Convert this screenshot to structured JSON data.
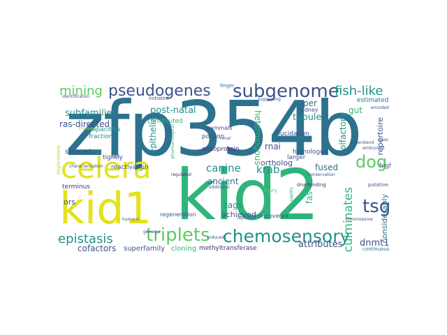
{
  "colors": {
    "yellow": "#e2e21b",
    "lime": "#a4db36",
    "green": "#5ec962",
    "teal_green": "#2fb47c",
    "teal": "#21918c",
    "blue_teal": "#2c728e",
    "navy": "#3b528b",
    "indigo": "#472d7b",
    "purple": "#440154"
  },
  "words": {
    "w01": "zfp354b",
    "w02": "kid2",
    "w03": "kid1",
    "w04": "celera",
    "w05": "subgenome",
    "w06": "pseudogenes",
    "w07": "triplets",
    "w08": "chemosensory",
    "w09": "mining",
    "w10": "fish-like",
    "w11": "tsgs",
    "w12": "dog",
    "w13": "epistasis",
    "w14": "culminates",
    "w15": "canine",
    "w16": "krab",
    "w17": "subfamilies",
    "w18": "post-natal",
    "w19": "heterologous",
    "w20": "olfactory",
    "w21": "tubule",
    "w22": "ras-directed",
    "w23": "paper",
    "w24": "gut",
    "w25": "epithelia",
    "w26": "rnai",
    "w27": "fused",
    "w28": "ancient",
    "w29": "ortholog",
    "w30": "repertoire",
    "w31": "tags",
    "w32": "achieved",
    "w33": "dnmt1",
    "w34": "attributes",
    "w35": "cofactors",
    "w36": "superfamily",
    "w37": "methyltransferase",
    "w38": "cloning",
    "w39": "ors",
    "w40": "fas",
    "w41": "considerably",
    "w42": "capacities",
    "w43": "fraction",
    "w44": "silenced",
    "w45": "tightly",
    "w46": "reactivation",
    "w47": "terminus",
    "w48": "regeneration",
    "w49": "portion",
    "w50": "oncoprotein",
    "w51": "constituted",
    "w52": "elucidation",
    "w53": "homologue",
    "w54": "larger",
    "w55": "highly",
    "w56": "estimated",
    "w57": "mammals",
    "w58": "kidney",
    "w59": "discovered",
    "w60": "injury",
    "w61": "dna-binding",
    "w62": "putative",
    "w63": "continuous",
    "w64": "initiated",
    "w65": "finger",
    "w66": "renal",
    "w67": "repressor",
    "w68": "transient",
    "w69": "implications",
    "w70": "zinc",
    "w71": "rapidly",
    "w72": "conservation",
    "w73": "characterization",
    "w74": "additional",
    "w75": "humans",
    "w76": "suggesting",
    "w77": "chromosome",
    "w78": "genome",
    "w79": "class",
    "w80": "identification",
    "w81": "pharmacological",
    "w82": "regulated",
    "w83": "understand",
    "w84": "induced",
    "w85": "encoded",
    "w86": "embryonic"
  }
}
